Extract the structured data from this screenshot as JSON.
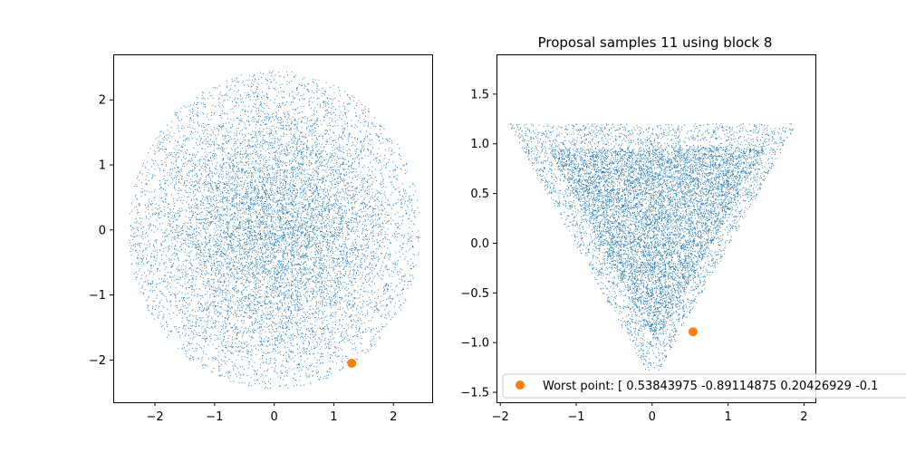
{
  "colors": {
    "samples": "#1f77b4",
    "worst_point": "#ff7f0e",
    "axes": "#000000",
    "background": "#ffffff",
    "legend_edge": "#cccccc"
  },
  "chart_data": [
    {
      "type": "scatter",
      "title": "",
      "xlabel": "",
      "ylabel": "",
      "xlim": [
        -2.7,
        2.65
      ],
      "ylim": [
        -2.65,
        2.7
      ],
      "xticks": [
        -2,
        -1,
        0,
        1,
        2
      ],
      "xtick_labels": [
        "−2",
        "−1",
        "0",
        "1",
        "2"
      ],
      "yticks": [
        -2,
        -1,
        0,
        1,
        2
      ],
      "ytick_labels": [
        "−2",
        "−1",
        "0",
        "1",
        "2"
      ],
      "grid": false,
      "series": [
        {
          "kind": "point-cloud",
          "distribution": "disk",
          "center": [
            0,
            0
          ],
          "radius": 2.45,
          "approx_count": 10000,
          "marker": "pixel"
        },
        {
          "kind": "highlight",
          "points": [
            [
              1.3,
              -2.05
            ]
          ],
          "marker": "circle"
        }
      ]
    },
    {
      "type": "scatter",
      "title": "Proposal samples 11 using block 8",
      "xlabel": "",
      "ylabel": "",
      "xlim": [
        -2.05,
        2.15
      ],
      "ylim": [
        -1.6,
        1.9
      ],
      "xticks": [
        -2,
        -1,
        0,
        1,
        2
      ],
      "xtick_labels": [
        "−2",
        "−1",
        "0",
        "1",
        "2"
      ],
      "yticks": [
        -1.5,
        -1.0,
        -0.5,
        0.0,
        0.5,
        1.0,
        1.5
      ],
      "ytick_labels": [
        "−1.5",
        "−1.0",
        "−0.5",
        "0.0",
        "0.5",
        "1.0",
        "1.5"
      ],
      "grid": false,
      "legend": {
        "placement": "lower-left",
        "entries": [
          "Worst point: [ 0.53843975 -0.89114875  0.20426929 -0.1"
        ]
      },
      "series": [
        {
          "kind": "point-cloud",
          "distribution": "inverted-triangle",
          "vertices": [
            [
              -1.9,
              1.2
            ],
            [
              1.9,
              1.2
            ],
            [
              0.0,
              -1.4
            ]
          ],
          "approx_count": 10000,
          "marker": "pixel"
        },
        {
          "kind": "highlight",
          "points": [
            [
              0.538,
              -0.891
            ]
          ],
          "marker": "circle"
        }
      ]
    }
  ]
}
